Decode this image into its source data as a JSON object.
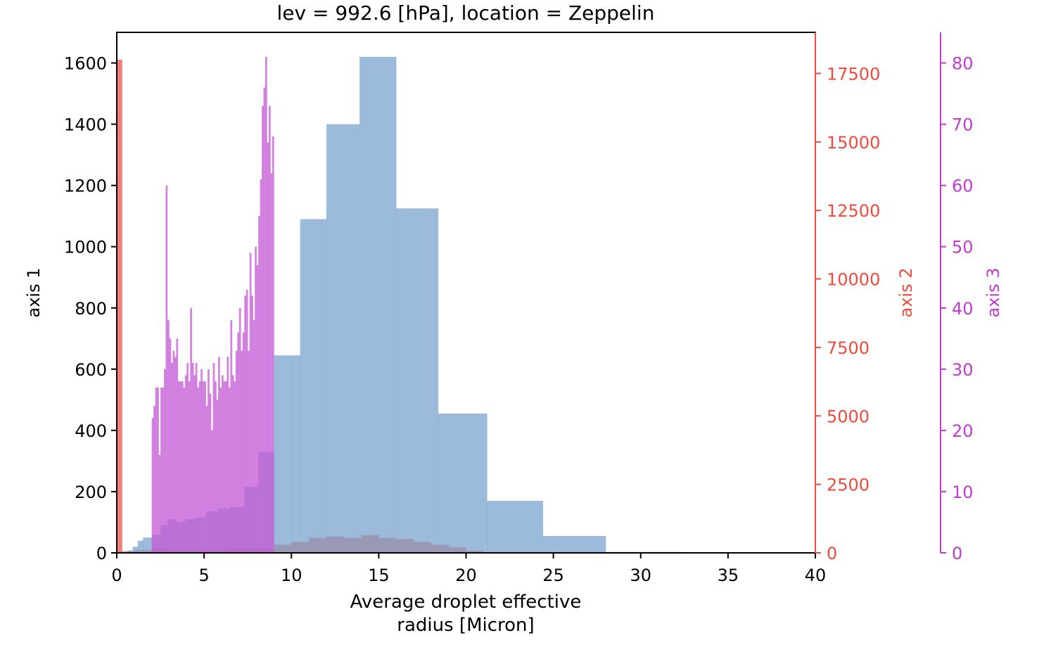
{
  "chart_data": {
    "type": "bar",
    "title": "lev = 992.6 [hPa], location = Zeppelin",
    "xlabel": "Average droplet effective\nradius [Micron]",
    "xlim": [
      0,
      40
    ],
    "x_ticks": [
      0,
      5,
      10,
      15,
      20,
      25,
      30,
      35,
      40
    ],
    "grid": false,
    "axes": [
      {
        "id": "axis1",
        "label": "axis 1",
        "side": "left",
        "color": "#000000",
        "ylim": [
          0,
          1700
        ],
        "ticks": [
          0,
          200,
          400,
          600,
          800,
          1000,
          1200,
          1400,
          1600
        ]
      },
      {
        "id": "axis2",
        "label": "axis 2",
        "side": "right",
        "color": "#ef4a3c",
        "ylim": [
          0,
          19000
        ],
        "ticks": [
          0,
          2500,
          5000,
          7500,
          10000,
          12500,
          15000,
          17500
        ]
      },
      {
        "id": "axis3",
        "label": "axis 3",
        "side": "right-offset",
        "color": "#c03bcf",
        "ylim": [
          0,
          85
        ],
        "ticks": [
          0,
          10,
          20,
          30,
          40,
          50,
          60,
          70,
          80
        ]
      }
    ],
    "series": [
      {
        "axis": "axis2",
        "color": "#ee5c57",
        "opacity": 0.8,
        "bins": [
          [
            0,
            0.3,
            18000
          ],
          [
            0.3,
            1,
            60
          ],
          [
            1,
            2,
            100
          ],
          [
            2,
            3,
            150
          ],
          [
            3,
            4,
            100
          ],
          [
            4,
            5,
            100
          ],
          [
            5,
            6,
            120
          ],
          [
            6,
            7,
            140
          ],
          [
            7,
            8,
            160
          ],
          [
            8,
            9,
            180
          ],
          [
            9,
            10,
            300
          ],
          [
            10,
            11,
            400
          ],
          [
            11,
            12,
            550
          ],
          [
            12,
            13,
            600
          ],
          [
            13,
            14,
            550
          ],
          [
            14,
            15,
            650
          ],
          [
            15,
            16,
            550
          ],
          [
            16,
            17,
            500
          ],
          [
            17,
            18,
            400
          ],
          [
            18,
            19,
            300
          ],
          [
            19,
            20,
            200
          ],
          [
            20,
            21,
            80
          ],
          [
            21,
            25,
            20
          ]
        ]
      },
      {
        "axis": "axis1",
        "color": "#7ba3cc",
        "opacity": 0.75,
        "bins": [
          [
            0.3,
            0.6,
            3
          ],
          [
            0.6,
            0.9,
            8
          ],
          [
            0.9,
            1.2,
            20
          ],
          [
            1.2,
            1.5,
            40
          ],
          [
            1.5,
            2.0,
            50
          ],
          [
            2.0,
            2.5,
            60
          ],
          [
            2.5,
            2.9,
            90
          ],
          [
            2.9,
            3.4,
            110
          ],
          [
            3.4,
            3.9,
            100
          ],
          [
            3.9,
            4.5,
            110
          ],
          [
            4.5,
            5.1,
            115
          ],
          [
            5.1,
            5.8,
            135
          ],
          [
            5.8,
            6.5,
            145
          ],
          [
            6.5,
            7.3,
            150
          ],
          [
            7.3,
            8.1,
            215
          ],
          [
            8.1,
            9.0,
            330
          ],
          [
            9.0,
            10.0,
            645
          ],
          [
            10.0,
            10.5,
            645
          ],
          [
            10.5,
            12.0,
            1090
          ],
          [
            12.0,
            13.9,
            1400
          ],
          [
            13.9,
            16.0,
            1620
          ],
          [
            16.0,
            18.4,
            1125
          ],
          [
            18.4,
            21.2,
            455
          ],
          [
            21.2,
            24.4,
            170
          ],
          [
            24.4,
            28.0,
            55
          ],
          [
            28.0,
            32.3,
            3
          ]
        ]
      },
      {
        "axis": "axis3",
        "color": "#c45bd5",
        "opacity": 0.75,
        "x_start": 2.0,
        "bin_width": 0.1,
        "values": [
          22,
          24,
          27,
          27,
          16,
          27,
          27,
          30,
          60,
          38,
          35,
          31,
          33,
          32,
          35,
          28,
          28,
          28,
          27,
          29,
          31,
          28,
          40,
          31,
          29,
          31,
          27,
          28,
          30,
          28,
          28,
          24,
          30,
          26,
          20,
          31,
          28,
          25,
          32,
          27,
          29,
          28,
          28,
          32,
          27,
          38,
          29,
          28,
          33,
          36,
          40,
          33,
          36,
          42,
          43,
          33,
          49,
          42,
          38,
          50,
          47,
          55,
          61,
          73,
          76,
          81,
          67,
          73,
          62,
          68
        ]
      }
    ]
  }
}
